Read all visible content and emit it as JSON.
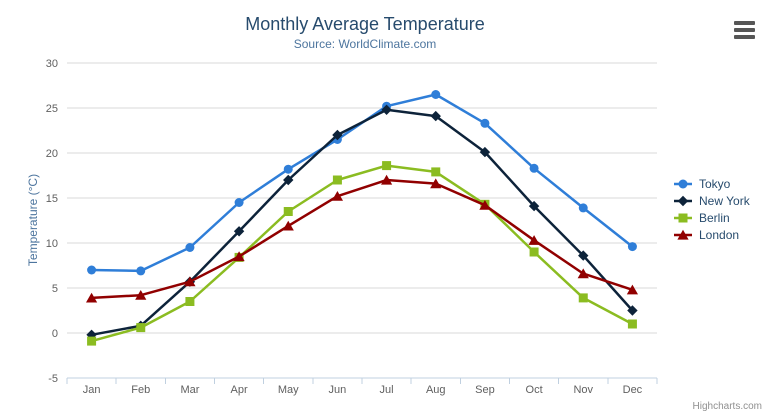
{
  "credits": "Highcharts.com",
  "icons": {
    "context_menu": "hamburger-icon"
  },
  "colors": {
    "background": "#ffffff",
    "title": "#274b6d",
    "subtitle": "#4d759e",
    "y_axis_title": "#4d759e",
    "axis_labels": "#606060",
    "grid": "#d8d8d8",
    "axis_line": "#c0d0e0",
    "legend_text": "#274b6d",
    "credits": "#909090",
    "menu_icon": "#565656"
  },
  "chart_data": {
    "type": "line",
    "title": "Monthly Average Temperature",
    "subtitle": "Source: WorldClimate.com",
    "categories": [
      "Jan",
      "Feb",
      "Mar",
      "Apr",
      "May",
      "Jun",
      "Jul",
      "Aug",
      "Sep",
      "Oct",
      "Nov",
      "Dec"
    ],
    "xlabel": "",
    "ylabel": "Temperature (°C)",
    "ylim": [
      -5,
      30
    ],
    "ytick_interval": 5,
    "grid": true,
    "legend_position": "right",
    "series": [
      {
        "name": "Tokyo",
        "color": "#2f7ed8",
        "marker": "circle",
        "values": [
          7.0,
          6.9,
          9.5,
          14.5,
          18.2,
          21.5,
          25.2,
          26.5,
          23.3,
          18.3,
          13.9,
          9.6
        ]
      },
      {
        "name": "New York",
        "color": "#0d233a",
        "marker": "diamond",
        "values": [
          -0.2,
          0.8,
          5.7,
          11.3,
          17.0,
          22.0,
          24.8,
          24.1,
          20.1,
          14.1,
          8.6,
          2.5
        ]
      },
      {
        "name": "Berlin",
        "color": "#8bbc21",
        "marker": "square",
        "values": [
          -0.9,
          0.6,
          3.5,
          8.4,
          13.5,
          17.0,
          18.6,
          17.9,
          14.3,
          9.0,
          3.9,
          1.0
        ]
      },
      {
        "name": "London",
        "color": "#910000",
        "marker": "triangle",
        "values": [
          3.9,
          4.2,
          5.7,
          8.5,
          11.9,
          15.2,
          17.0,
          16.6,
          14.2,
          10.3,
          6.6,
          4.8
        ]
      }
    ]
  }
}
